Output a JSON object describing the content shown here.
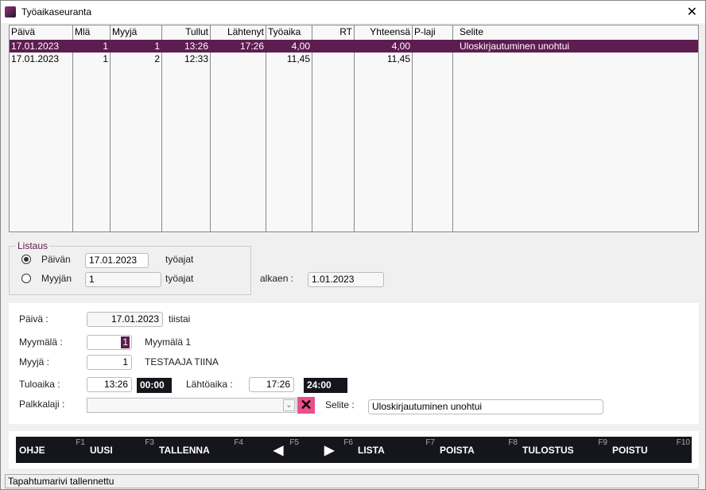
{
  "window": {
    "title": "Työaikaseuranta",
    "close": "✕"
  },
  "table": {
    "headers": [
      "Päivä",
      "Mlä",
      "Myyjä",
      "Tullut",
      "Lähtenyt",
      "Työaika",
      "RT",
      "Yhteensä",
      "P-laji",
      "Selite"
    ],
    "rows": [
      [
        "17.01.2023",
        "1",
        "1",
        "13:26",
        "17:26",
        "4,00",
        "",
        "4,00",
        "",
        "Uloskirjautuminen unohtui"
      ],
      [
        "17.01.2023",
        "1",
        "2",
        "12:33",
        "",
        "11,45",
        "",
        "11,45",
        "",
        ""
      ]
    ],
    "selected_row": 0
  },
  "listaus": {
    "label": "Listaus",
    "paivan_label": "Päivän",
    "paivan_value": "17.01.2023",
    "paivan_suffix": "työajat",
    "myyjan_label": "Myyjän",
    "myyjan_value": "1",
    "myyjan_suffix": "työajat",
    "alkaen_label": "alkaen :",
    "alkaen_value": "1.01.2023",
    "selected": "paivan"
  },
  "form": {
    "paiva_label": "Päivä :",
    "paiva_value": "17.01.2023",
    "weekday": "tiistai",
    "myymala_label": "Myymälä :",
    "myymala_value": "1",
    "myymala_name": "Myymälä 1",
    "myyja_label": "Myyjä :",
    "myyja_value": "1",
    "myyja_name": "TESTAAJA TIINA",
    "tuloaika_label": "Tuloaika :",
    "tuloaika_value": "13:26",
    "tuloaika_dark": "00:00",
    "lahtoaika_label": "Lähtöaika :",
    "lahtoaika_value": "17:26",
    "lahtoaika_dark": "24:00",
    "palkkalaji_label": "Palkkalaji :",
    "palkkalaji_value": "",
    "selite_label": "Selite :",
    "selite_value": "Uloskirjautuminen unohtui"
  },
  "buttons": [
    {
      "label": "OHJE",
      "key": "F1"
    },
    {
      "label": "UUSI",
      "key": "F3"
    },
    {
      "label": "TALLENNA",
      "key": "F4"
    },
    {
      "label": "◀",
      "key": "F5"
    },
    {
      "label": "▶",
      "key": "F6"
    },
    {
      "label": "LISTA",
      "key": "F7"
    },
    {
      "label": "POISTA",
      "key": "F8"
    },
    {
      "label": "TULOSTUS",
      "key": "F9"
    },
    {
      "label": "POISTU",
      "key": "F10"
    }
  ],
  "status": "Tapahtumarivi tallennettu",
  "colors": {
    "accent": "#5e1d50",
    "dark": "#15161c",
    "clear": "#e8508a"
  }
}
